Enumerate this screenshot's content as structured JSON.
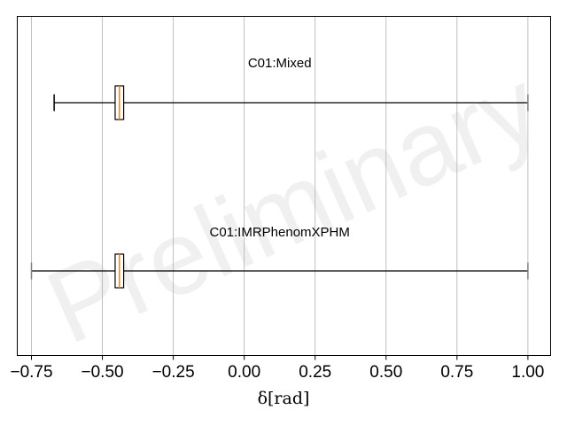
{
  "chart_data": {
    "type": "boxplot",
    "orientation": "horizontal",
    "xlabel": "δ[rad]",
    "xlim": [
      -0.8,
      1.08
    ],
    "xticks": [
      -0.75,
      -0.5,
      -0.25,
      0.0,
      0.25,
      0.5,
      0.75,
      1.0
    ],
    "xtick_labels": [
      "−0.75",
      "−0.50",
      "−0.25",
      "0.00",
      "0.25",
      "0.50",
      "0.75",
      "1.00"
    ],
    "grid": "vertical",
    "watermark": "Preliminary",
    "series": [
      {
        "name": "C01:Mixed",
        "whisker_low": -0.67,
        "q1": -0.455,
        "median": -0.44,
        "q3": -0.425,
        "whisker_high": 1.0
      },
      {
        "name": "C01:IMRPhenomXPHM",
        "whisker_low": -0.75,
        "q1": -0.455,
        "median": -0.44,
        "q3": -0.425,
        "whisker_high": 1.0
      }
    ],
    "colors": {
      "box": "#000000",
      "median": "#ff7f0e",
      "grid": "#b0b0b0",
      "cap": "#808080"
    }
  }
}
